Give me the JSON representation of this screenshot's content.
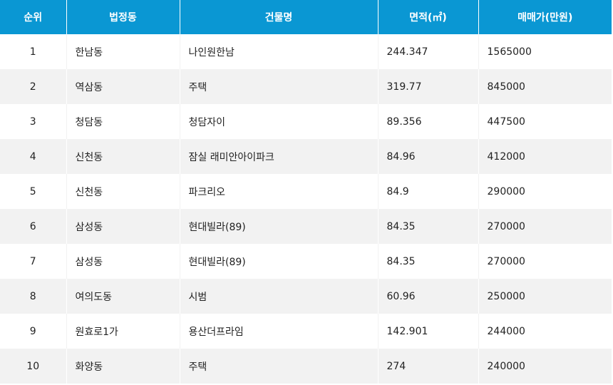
{
  "theme": {
    "header_bg": "#0a97d3",
    "header_text": "#ffffff",
    "row_alt_bg": "#f2f2f2",
    "row_bg": "#ffffff",
    "text": "#222222"
  },
  "table": {
    "columns": [
      {
        "key": "rank",
        "label": "순위"
      },
      {
        "key": "dong",
        "label": "법정동"
      },
      {
        "key": "building",
        "label": "건물명"
      },
      {
        "key": "area",
        "label": "면적(㎡)"
      },
      {
        "key": "price",
        "label": "매매가(만원)"
      }
    ],
    "rows": [
      {
        "rank": "1",
        "dong": "한남동",
        "building": "나인원한남",
        "area": "244.347",
        "price": "1565000"
      },
      {
        "rank": "2",
        "dong": "역삼동",
        "building": "주택",
        "area": "319.77",
        "price": "845000"
      },
      {
        "rank": "3",
        "dong": "청담동",
        "building": "청담자이",
        "area": "89.356",
        "price": "447500"
      },
      {
        "rank": "4",
        "dong": "신천동",
        "building": "잠실 래미안아이파크",
        "area": "84.96",
        "price": "412000"
      },
      {
        "rank": "5",
        "dong": "신천동",
        "building": "파크리오",
        "area": "84.9",
        "price": "290000"
      },
      {
        "rank": "6",
        "dong": "삼성동",
        "building": "현대빌라(89)",
        "area": "84.35",
        "price": "270000"
      },
      {
        "rank": "7",
        "dong": "삼성동",
        "building": "현대빌라(89)",
        "area": "84.35",
        "price": "270000"
      },
      {
        "rank": "8",
        "dong": "여의도동",
        "building": "시범",
        "area": "60.96",
        "price": "250000"
      },
      {
        "rank": "9",
        "dong": "원효로1가",
        "building": "용산더프라임",
        "area": "142.901",
        "price": "244000"
      },
      {
        "rank": "10",
        "dong": "화양동",
        "building": "주택",
        "area": "274",
        "price": "240000"
      }
    ]
  }
}
